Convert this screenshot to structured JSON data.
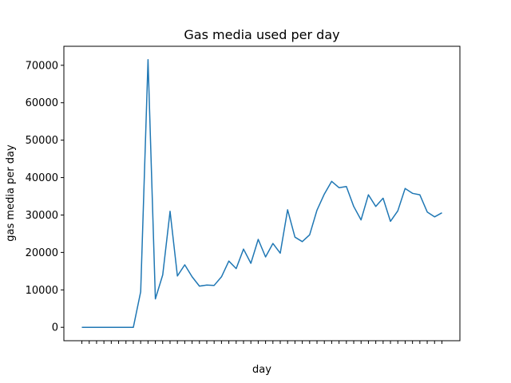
{
  "chart_data": {
    "type": "line",
    "title": "Gas media used per day",
    "x_label": "day",
    "y_label": "gas media per day",
    "categories": [
      null,
      null,
      null,
      null,
      null,
      null,
      null,
      null,
      null,
      null,
      null,
      null,
      null,
      null,
      null,
      null,
      null,
      null,
      null,
      null,
      null,
      null,
      null,
      null,
      null,
      null,
      null,
      null,
      null,
      null,
      null,
      null,
      null,
      null,
      null,
      null,
      null,
      null,
      null,
      null,
      null,
      null,
      null,
      null,
      null,
      null,
      null,
      null,
      null,
      null
    ],
    "series": [
      {
        "name": "gas media",
        "color": "#1f77b4",
        "values": [
          0,
          0,
          0,
          0,
          0,
          0,
          0,
          0,
          9500,
          71500,
          7600,
          14000,
          31000,
          13700,
          16700,
          13500,
          11000,
          11300,
          11200,
          13500,
          17700,
          15700,
          20900,
          17100,
          23500,
          18800,
          22400,
          19800,
          31400,
          24100,
          22900,
          24700,
          31300,
          35600,
          39000,
          37300,
          37600,
          32300,
          28700,
          35400,
          32300,
          34500,
          28300,
          31100,
          37100,
          35800,
          35400,
          30800,
          29500,
          30600
        ]
      }
    ],
    "ylim": [
      -3580,
      75080
    ],
    "yticks": [
      0,
      10000,
      20000,
      30000,
      40000,
      50000,
      60000,
      70000
    ]
  }
}
